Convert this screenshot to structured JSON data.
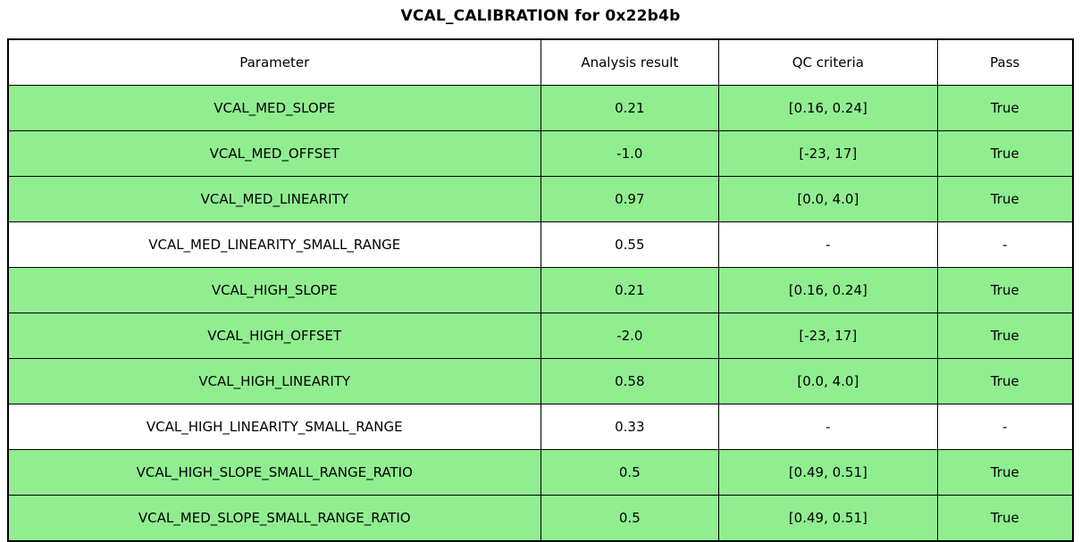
{
  "title": "VCAL_CALIBRATION for 0x22b4b",
  "colors": {
    "pass_row_bg": "#90EE90",
    "neutral_row_bg": "#FFFFFF",
    "border": "#000000",
    "text": "#000000"
  },
  "table": {
    "columns": [
      "Parameter",
      "Analysis result",
      "QC criteria",
      "Pass"
    ],
    "rows": [
      {
        "parameter": "VCAL_MED_SLOPE",
        "analysis_result": "0.21",
        "qc_criteria": "[0.16, 0.24]",
        "pass": "True",
        "highlight": true
      },
      {
        "parameter": "VCAL_MED_OFFSET",
        "analysis_result": "-1.0",
        "qc_criteria": "[-23, 17]",
        "pass": "True",
        "highlight": true
      },
      {
        "parameter": "VCAL_MED_LINEARITY",
        "analysis_result": "0.97",
        "qc_criteria": "[0.0, 4.0]",
        "pass": "True",
        "highlight": true
      },
      {
        "parameter": "VCAL_MED_LINEARITY_SMALL_RANGE",
        "analysis_result": "0.55",
        "qc_criteria": "-",
        "pass": "-",
        "highlight": false
      },
      {
        "parameter": "VCAL_HIGH_SLOPE",
        "analysis_result": "0.21",
        "qc_criteria": "[0.16, 0.24]",
        "pass": "True",
        "highlight": true
      },
      {
        "parameter": "VCAL_HIGH_OFFSET",
        "analysis_result": "-2.0",
        "qc_criteria": "[-23, 17]",
        "pass": "True",
        "highlight": true
      },
      {
        "parameter": "VCAL_HIGH_LINEARITY",
        "analysis_result": "0.58",
        "qc_criteria": "[0.0, 4.0]",
        "pass": "True",
        "highlight": true
      },
      {
        "parameter": "VCAL_HIGH_LINEARITY_SMALL_RANGE",
        "analysis_result": "0.33",
        "qc_criteria": "-",
        "pass": "-",
        "highlight": false
      },
      {
        "parameter": "VCAL_HIGH_SLOPE_SMALL_RANGE_RATIO",
        "analysis_result": "0.5",
        "qc_criteria": "[0.49, 0.51]",
        "pass": "True",
        "highlight": true
      },
      {
        "parameter": "VCAL_MED_SLOPE_SMALL_RANGE_RATIO",
        "analysis_result": "0.5",
        "qc_criteria": "[0.49, 0.51]",
        "pass": "True",
        "highlight": true
      }
    ]
  },
  "chart_data": {
    "type": "table",
    "title": "VCAL_CALIBRATION for 0x22b4b",
    "columns": [
      "Parameter",
      "Analysis result",
      "QC criteria",
      "Pass"
    ],
    "rows": [
      [
        "VCAL_MED_SLOPE",
        "0.21",
        "[0.16, 0.24]",
        "True"
      ],
      [
        "VCAL_MED_OFFSET",
        "-1.0",
        "[-23, 17]",
        "True"
      ],
      [
        "VCAL_MED_LINEARITY",
        "0.97",
        "[0.0, 4.0]",
        "True"
      ],
      [
        "VCAL_MED_LINEARITY_SMALL_RANGE",
        "0.55",
        "-",
        "-"
      ],
      [
        "VCAL_HIGH_SLOPE",
        "0.21",
        "[0.16, 0.24]",
        "True"
      ],
      [
        "VCAL_HIGH_OFFSET",
        "-2.0",
        "[-23, 17]",
        "True"
      ],
      [
        "VCAL_HIGH_LINEARITY",
        "0.58",
        "[0.0, 4.0]",
        "True"
      ],
      [
        "VCAL_HIGH_LINEARITY_SMALL_RANGE",
        "0.33",
        "-",
        "-"
      ],
      [
        "VCAL_HIGH_SLOPE_SMALL_RANGE_RATIO",
        "0.5",
        "[0.49, 0.51]",
        "True"
      ],
      [
        "VCAL_MED_SLOPE_SMALL_RANGE_RATIO",
        "0.5",
        "[0.49, 0.51]",
        "True"
      ]
    ],
    "highlighted_row_indices": [
      0,
      1,
      2,
      4,
      5,
      6,
      8,
      9
    ],
    "highlight_color": "#90EE90",
    "layout": "title centered above table; all cells center-aligned; black grid borders"
  }
}
